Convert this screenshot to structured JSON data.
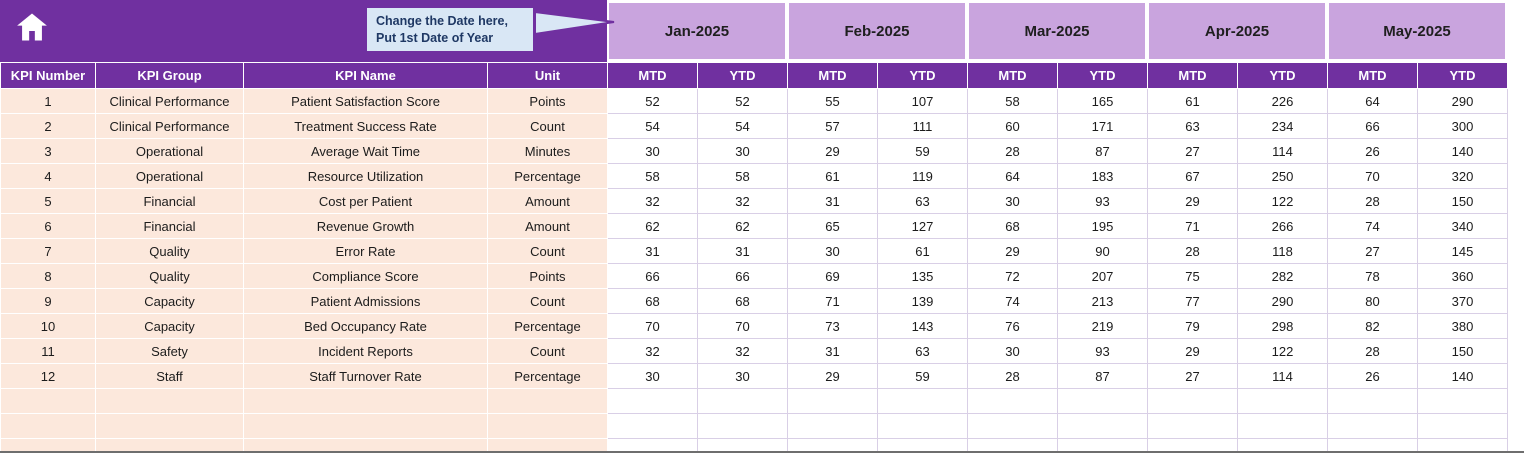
{
  "colors": {
    "purple": "#7030A0",
    "lavender": "#C9A4DE",
    "peach": "#FCE8DC",
    "callout-bg": "#D9E7F5",
    "callout-border": "#7030A0",
    "callout-text": "#1F3864",
    "grid": "#D9CFE6"
  },
  "icons": {
    "home": "home-icon"
  },
  "callout": {
    "line1": "Change the Date here,",
    "line2": "Put 1st Date of Year"
  },
  "months": [
    "Jan-2025",
    "Feb-2025",
    "Mar-2025",
    "Apr-2025",
    "May-2025"
  ],
  "subheaders": {
    "mtd": "MTD",
    "ytd": "YTD"
  },
  "columns": [
    "KPI Number",
    "KPI Group",
    "KPI Name",
    "Unit"
  ],
  "rows": [
    {
      "number": "1",
      "group": "Clinical Performance",
      "name": "Patient Satisfaction Score",
      "unit": "Points",
      "values": [
        52,
        52,
        55,
        107,
        58,
        165,
        61,
        226,
        64,
        290
      ]
    },
    {
      "number": "2",
      "group": "Clinical Performance",
      "name": "Treatment Success Rate",
      "unit": "Count",
      "values": [
        54,
        54,
        57,
        111,
        60,
        171,
        63,
        234,
        66,
        300
      ]
    },
    {
      "number": "3",
      "group": "Operational",
      "name": "Average Wait Time",
      "unit": "Minutes",
      "values": [
        30,
        30,
        29,
        59,
        28,
        87,
        27,
        114,
        26,
        140
      ]
    },
    {
      "number": "4",
      "group": "Operational",
      "name": "Resource Utilization",
      "unit": "Percentage",
      "values": [
        58,
        58,
        61,
        119,
        64,
        183,
        67,
        250,
        70,
        320
      ]
    },
    {
      "number": "5",
      "group": "Financial",
      "name": "Cost per Patient",
      "unit": "Amount",
      "values": [
        32,
        32,
        31,
        63,
        30,
        93,
        29,
        122,
        28,
        150
      ]
    },
    {
      "number": "6",
      "group": "Financial",
      "name": "Revenue Growth",
      "unit": "Amount",
      "values": [
        62,
        62,
        65,
        127,
        68,
        195,
        71,
        266,
        74,
        340
      ]
    },
    {
      "number": "7",
      "group": "Quality",
      "name": "Error Rate",
      "unit": "Count",
      "values": [
        31,
        31,
        30,
        61,
        29,
        90,
        28,
        118,
        27,
        145
      ]
    },
    {
      "number": "8",
      "group": "Quality",
      "name": "Compliance Score",
      "unit": "Points",
      "values": [
        66,
        66,
        69,
        135,
        72,
        207,
        75,
        282,
        78,
        360
      ]
    },
    {
      "number": "9",
      "group": "Capacity",
      "name": "Patient Admissions",
      "unit": "Count",
      "values": [
        68,
        68,
        71,
        139,
        74,
        213,
        77,
        290,
        80,
        370
      ]
    },
    {
      "number": "10",
      "group": "Capacity",
      "name": "Bed Occupancy Rate",
      "unit": "Percentage",
      "values": [
        70,
        70,
        73,
        143,
        76,
        219,
        79,
        298,
        82,
        380
      ]
    },
    {
      "number": "11",
      "group": "Safety",
      "name": "Incident Reports",
      "unit": "Count",
      "values": [
        32,
        32,
        31,
        63,
        30,
        93,
        29,
        122,
        28,
        150
      ]
    },
    {
      "number": "12",
      "group": "Staff",
      "name": "Staff Turnover Rate",
      "unit": "Percentage",
      "values": [
        30,
        30,
        29,
        59,
        28,
        87,
        27,
        114,
        26,
        140
      ]
    }
  ],
  "empty_rows": 3
}
